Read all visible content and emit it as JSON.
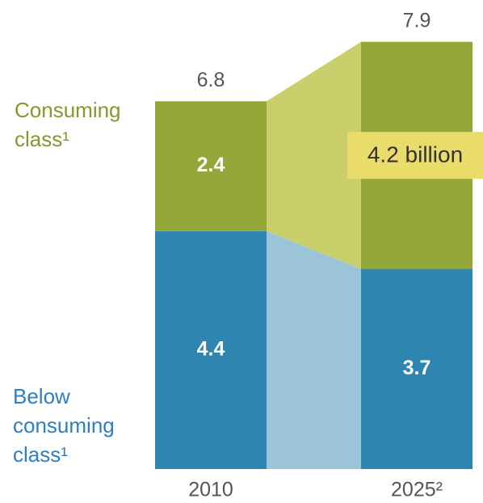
{
  "chart_data": {
    "type": "stacked-bar",
    "categories": [
      "2010",
      "2025²"
    ],
    "series": [
      {
        "name": "Below consuming class¹",
        "color": "#2e86b0",
        "link_color": "#9bc4d8",
        "label_color": "#2e7fc2",
        "values": [
          4.4,
          3.7
        ]
      },
      {
        "name": "Consuming class¹",
        "color": "#96a73a",
        "link_color": "#c9d06b",
        "label_color": "#7f9b2e",
        "values": [
          2.4,
          4.2
        ],
        "value_labels": [
          "2.4",
          "4.2 billion"
        ]
      }
    ],
    "totals": [
      6.8,
      7.9
    ],
    "ylim": [
      0,
      8
    ]
  }
}
